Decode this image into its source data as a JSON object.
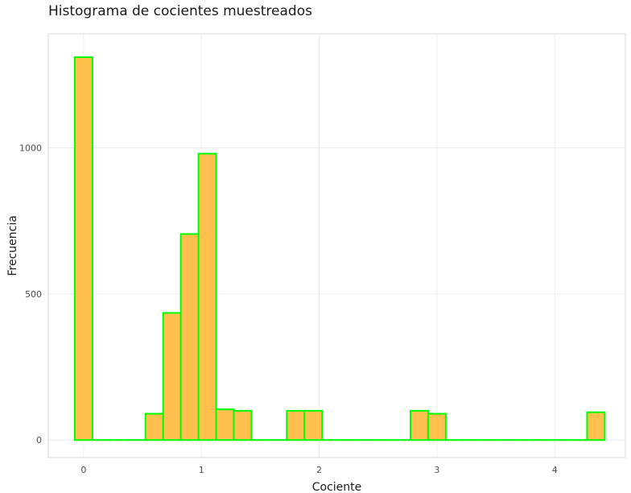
{
  "chart_data": {
    "type": "bar",
    "title": "Histograma de cocientes muestreados",
    "xlabel": "Cociente",
    "ylabel": "Frecuencia",
    "xlim": [
      -0.3,
      4.6
    ],
    "ylim": [
      -60,
      1390
    ],
    "x_ticks": [
      0,
      1,
      2,
      3,
      4
    ],
    "y_ticks": [
      0,
      500,
      1000
    ],
    "grid": true,
    "bin_width": 0.15,
    "bins": [
      {
        "x": 0.0,
        "value": 1310
      },
      {
        "x": 0.15,
        "value": 0
      },
      {
        "x": 0.3,
        "value": 0
      },
      {
        "x": 0.45,
        "value": 0
      },
      {
        "x": 0.6,
        "value": 90
      },
      {
        "x": 0.75,
        "value": 435
      },
      {
        "x": 0.9,
        "value": 705
      },
      {
        "x": 1.05,
        "value": 980
      },
      {
        "x": 1.2,
        "value": 105
      },
      {
        "x": 1.35,
        "value": 100
      },
      {
        "x": 1.5,
        "value": 0
      },
      {
        "x": 1.65,
        "value": 0
      },
      {
        "x": 1.8,
        "value": 100
      },
      {
        "x": 1.95,
        "value": 100
      },
      {
        "x": 2.1,
        "value": 0
      },
      {
        "x": 2.25,
        "value": 0
      },
      {
        "x": 2.4,
        "value": 0
      },
      {
        "x": 2.55,
        "value": 0
      },
      {
        "x": 2.7,
        "value": 0
      },
      {
        "x": 2.85,
        "value": 100
      },
      {
        "x": 3.0,
        "value": 90
      },
      {
        "x": 3.15,
        "value": 0
      },
      {
        "x": 3.3,
        "value": 0
      },
      {
        "x": 3.45,
        "value": 0
      },
      {
        "x": 3.6,
        "value": 0
      },
      {
        "x": 3.75,
        "value": 0
      },
      {
        "x": 3.9,
        "value": 0
      },
      {
        "x": 4.05,
        "value": 0
      },
      {
        "x": 4.2,
        "value": 0
      },
      {
        "x": 4.35,
        "value": 95
      }
    ],
    "colors": {
      "fill": "#ffc04d",
      "stroke": "#00ff00",
      "grid": "#ececec",
      "panel_border": "#d9d9d9",
      "text": "#4d4d4d"
    }
  }
}
